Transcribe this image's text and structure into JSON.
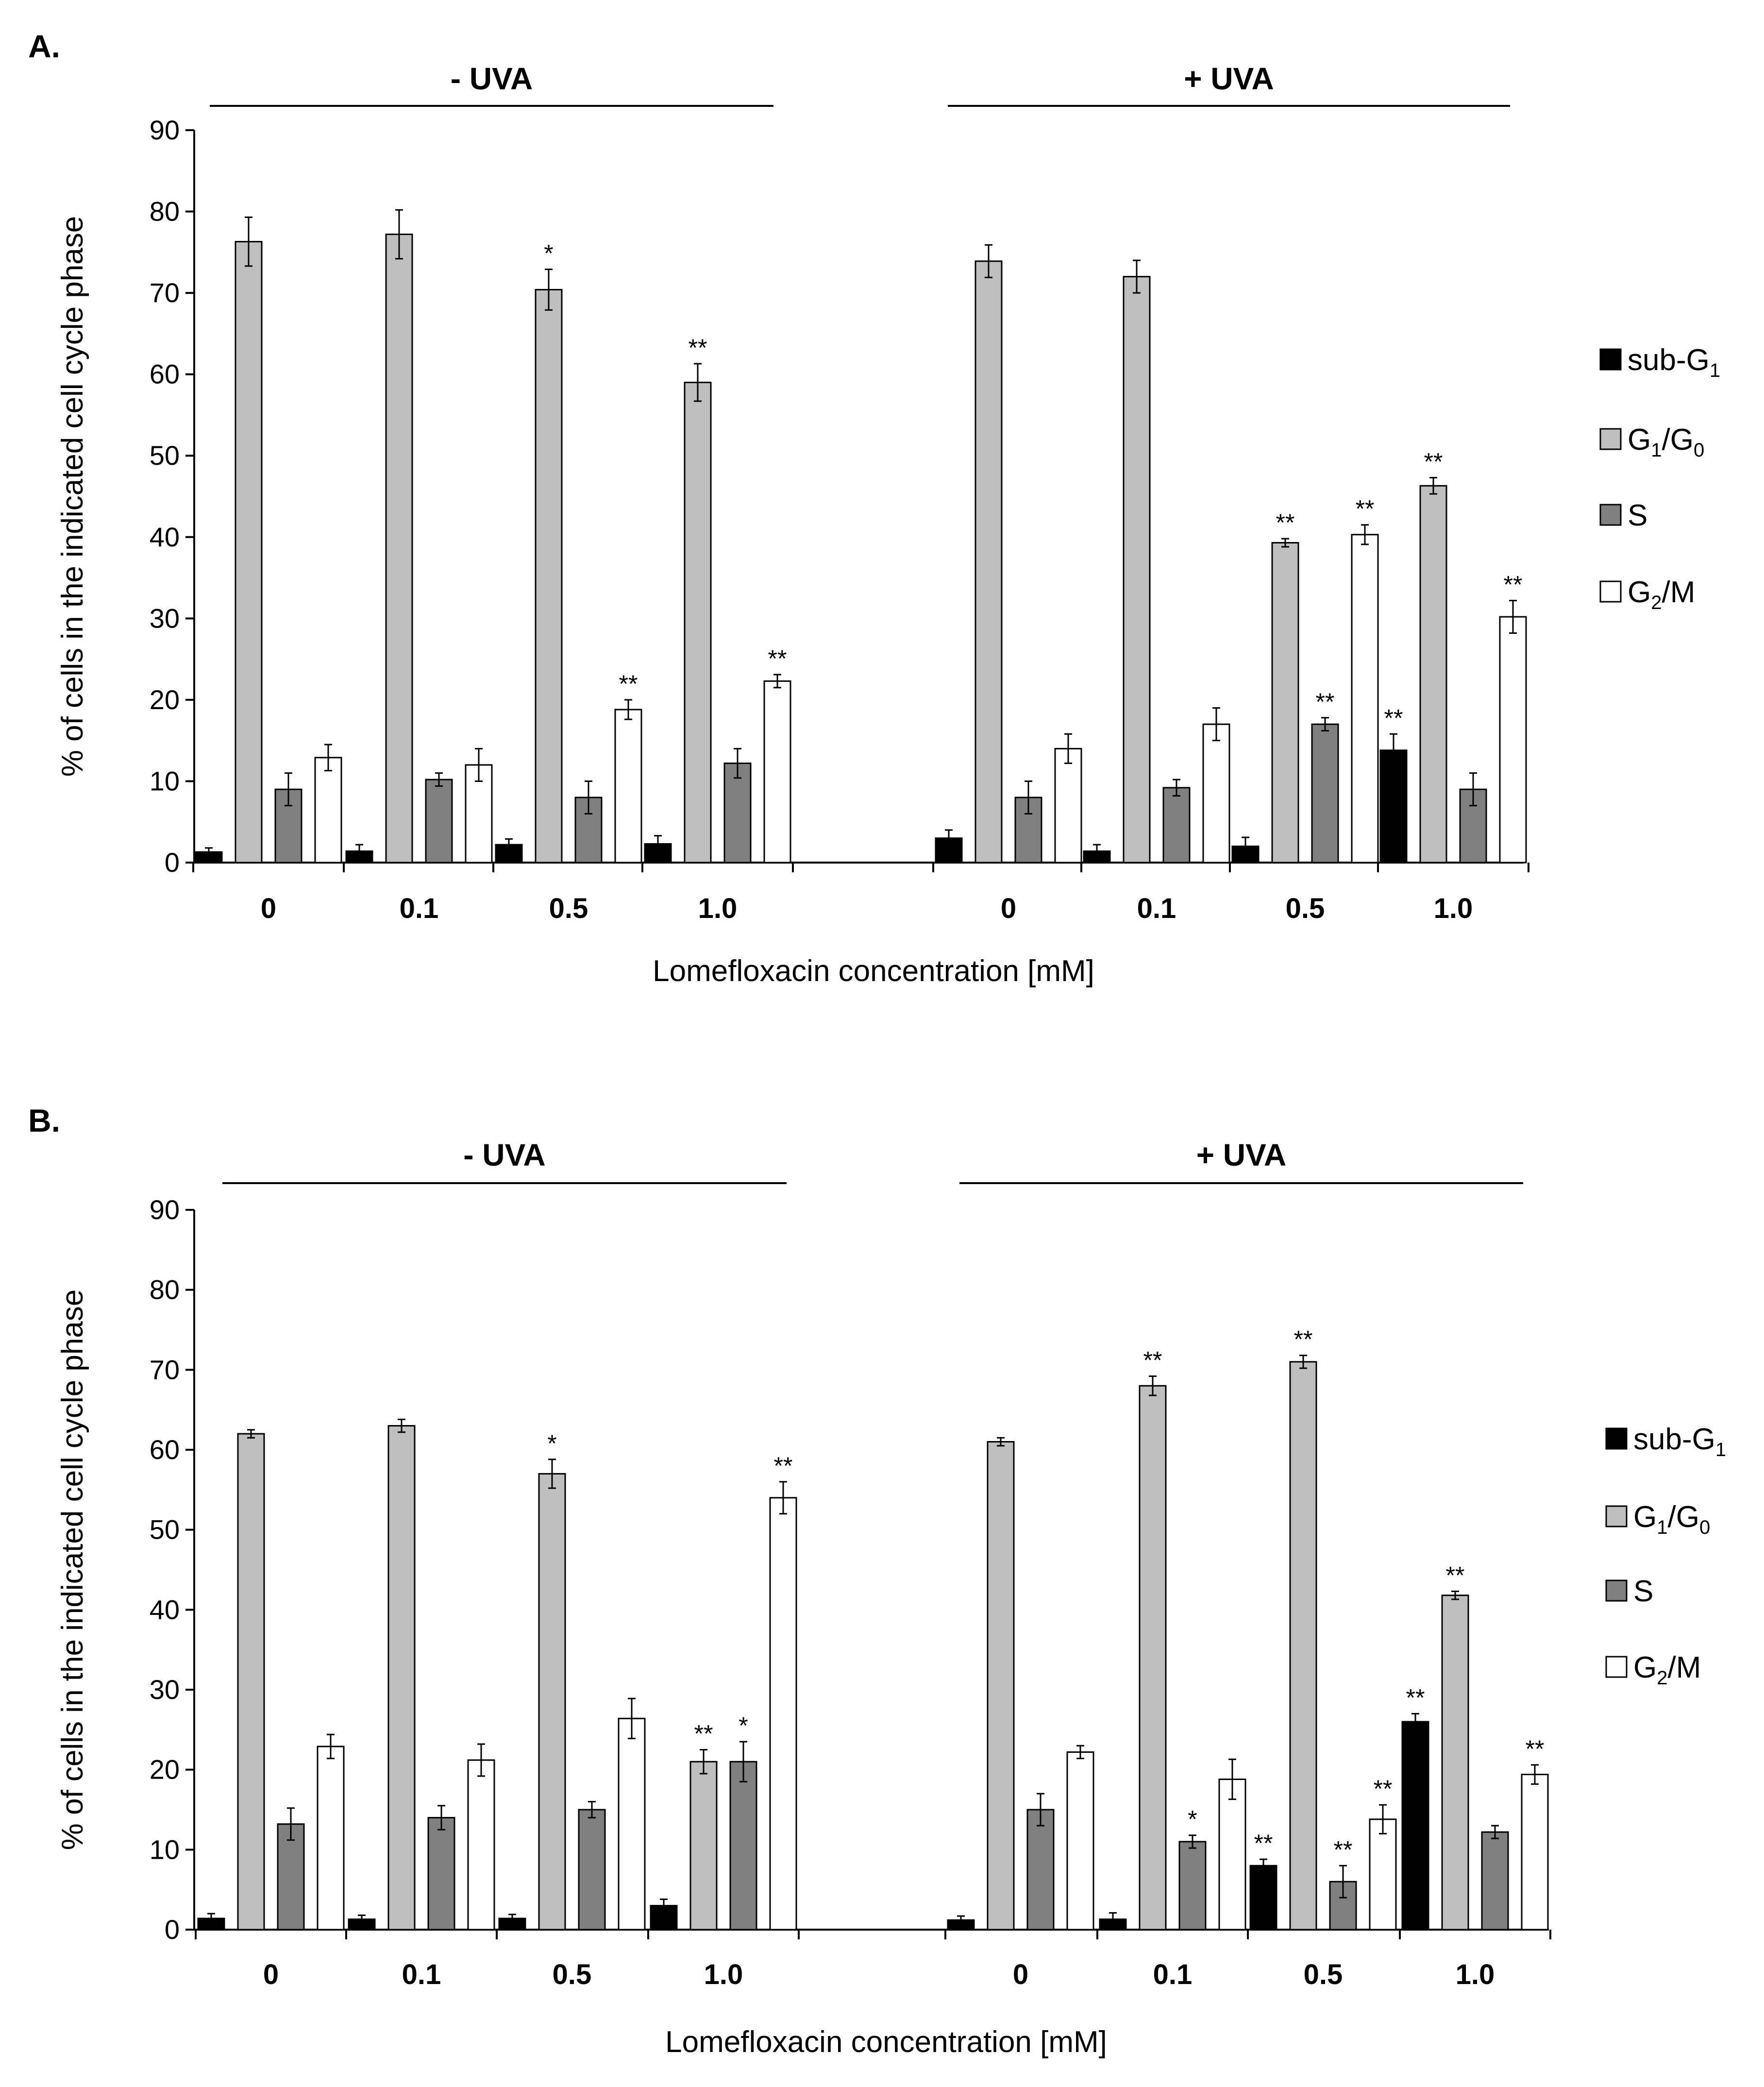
{
  "colors": {
    "sub_g1": "#000000",
    "g1_g0": "#bfbfbf",
    "s": "#808080",
    "g2_m": "#ffffff",
    "axis": "#000000"
  },
  "legend": [
    {
      "key": "sub_g1",
      "base": "sub-G",
      "sub": "1",
      "mid": "",
      "sub2": ""
    },
    {
      "key": "g1_g0",
      "base": "G",
      "sub": "1",
      "mid": "/G",
      "sub2": "0"
    },
    {
      "key": "s",
      "base": "S",
      "sub": "",
      "mid": "",
      "sub2": ""
    },
    {
      "key": "g2_m",
      "base": "G",
      "sub": "2",
      "mid": "/M",
      "sub2": ""
    }
  ],
  "chart_data": [
    {
      "type": "bar",
      "panel_label": "A.",
      "ylabel": "% of cells in the indicated cell cycle phase",
      "xlabel": "Lomefloxacin concentration [mM]",
      "ylim": [
        0,
        90
      ],
      "yticks": [
        "0",
        "10",
        "20",
        "30",
        "40",
        "50",
        "60",
        "70",
        "80",
        "90"
      ],
      "groups": [
        {
          "label": "- UVA",
          "categories": [
            "0",
            "0.1",
            "0.5",
            "1.0"
          ]
        },
        {
          "label": "+ UVA",
          "categories": [
            "0",
            "0.1",
            "0.5",
            "1.0"
          ]
        }
      ],
      "series": [
        {
          "name": "sub-G1",
          "key": "sub_g1",
          "values": [
            1.3,
            1.4,
            2.2,
            2.3,
            3.0,
            1.4,
            2.0,
            13.8
          ],
          "errors": [
            0.5,
            0.8,
            0.7,
            1.0,
            1.0,
            0.8,
            1.1,
            2.0
          ],
          "sig": [
            "",
            "",
            "",
            "",
            "",
            "",
            "",
            "**"
          ]
        },
        {
          "name": "G1/G0",
          "key": "g1_g0",
          "values": [
            76.3,
            77.2,
            70.4,
            59.0,
            73.9,
            72.0,
            39.3,
            46.3
          ],
          "errors": [
            3.0,
            3.0,
            2.5,
            2.3,
            2.0,
            2.0,
            0.5,
            1.0
          ],
          "sig": [
            "",
            "",
            "*",
            "**",
            "",
            "",
            "**",
            "**"
          ]
        },
        {
          "name": "S",
          "key": "s",
          "values": [
            9.0,
            10.2,
            8.0,
            12.2,
            8.0,
            9.2,
            17.0,
            9.0
          ],
          "errors": [
            2.0,
            0.8,
            2.0,
            1.8,
            2.0,
            1.0,
            0.8,
            2.0
          ],
          "sig": [
            "",
            "",
            "",
            "",
            "",
            "",
            "**",
            ""
          ]
        },
        {
          "name": "G2/M",
          "key": "g2_m",
          "values": [
            12.9,
            12.0,
            18.8,
            22.3,
            14.0,
            17.0,
            40.3,
            30.2
          ],
          "errors": [
            1.6,
            2.0,
            1.2,
            0.8,
            1.8,
            2.0,
            1.2,
            2.0
          ],
          "sig": [
            "",
            "",
            "**",
            "**",
            "",
            "",
            "**",
            "**"
          ]
        }
      ]
    },
    {
      "type": "bar",
      "panel_label": "B.",
      "ylabel": "% of cells in the indicated cell cycle phase",
      "xlabel": "Lomefloxacin concentration [mM]",
      "ylim": [
        0,
        90
      ],
      "yticks": [
        "0",
        "10",
        "20",
        "30",
        "40",
        "50",
        "60",
        "70",
        "80",
        "90"
      ],
      "groups": [
        {
          "label": "- UVA",
          "categories": [
            "0",
            "0.1",
            "0.5",
            "1.0"
          ]
        },
        {
          "label": "+ UVA",
          "categories": [
            "0",
            "0.1",
            "0.5",
            "1.0"
          ]
        }
      ],
      "series": [
        {
          "name": "sub-G1",
          "key": "sub_g1",
          "values": [
            1.4,
            1.3,
            1.4,
            3.0,
            1.2,
            1.3,
            8.0,
            26.0
          ],
          "errors": [
            0.6,
            0.5,
            0.5,
            0.8,
            0.5,
            0.8,
            0.8,
            1.0
          ],
          "sig": [
            "",
            "",
            "",
            "",
            "",
            "",
            "**",
            "**"
          ]
        },
        {
          "name": "G1/G0",
          "key": "g1_g0",
          "values": [
            62.0,
            63.0,
            57.0,
            21.0,
            61.0,
            68.0,
            71.0,
            41.8
          ],
          "errors": [
            0.5,
            0.8,
            1.8,
            1.5,
            0.5,
            1.2,
            0.8,
            0.5
          ],
          "sig": [
            "",
            "",
            "*",
            "**",
            "",
            "**",
            "**",
            "**"
          ]
        },
        {
          "name": "S",
          "key": "s",
          "values": [
            13.2,
            14.0,
            15.0,
            21.0,
            15.0,
            11.0,
            6.0,
            12.2
          ],
          "errors": [
            2.0,
            1.5,
            1.0,
            2.5,
            2.0,
            0.8,
            2.0,
            0.8
          ],
          "sig": [
            "",
            "",
            "",
            "*",
            "",
            "*",
            "**",
            ""
          ]
        },
        {
          "name": "G2/M",
          "key": "g2_m",
          "values": [
            22.9,
            21.2,
            26.4,
            54.0,
            22.2,
            18.8,
            13.8,
            19.4
          ],
          "errors": [
            1.5,
            2.0,
            2.5,
            2.0,
            0.8,
            2.5,
            1.8,
            1.2
          ],
          "sig": [
            "",
            "",
            "",
            "**",
            "",
            "",
            "**",
            "**"
          ]
        }
      ]
    }
  ]
}
